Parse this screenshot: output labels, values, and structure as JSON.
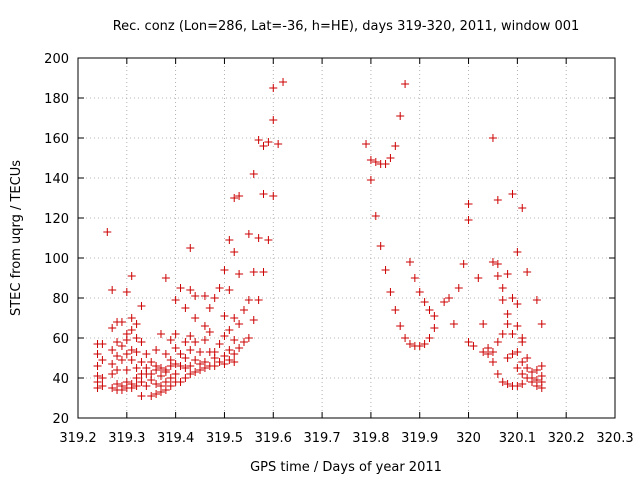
{
  "chart_data": {
    "type": "scatter",
    "title": "Rec. conz (Lon=286, Lat=-36, h=HE), days 319-320, 2011, window 001",
    "xlabel": "GPS time / Days of year 2011",
    "ylabel": "STEC from uqrg / TECUs",
    "xlim": [
      319.2,
      320.3
    ],
    "ylim": [
      20,
      200
    ],
    "x_ticks": [
      319.2,
      319.3,
      319.4,
      319.5,
      319.6,
      319.7,
      319.8,
      319.9,
      320.0,
      320.1,
      320.2,
      320.3
    ],
    "x_tick_labels": [
      "319.2",
      "319.3",
      "319.4",
      "319.5",
      "319.6",
      "319.7",
      "319.8",
      "319.9",
      "320",
      "320.1",
      "320.2",
      "320.3"
    ],
    "y_ticks": [
      20,
      40,
      60,
      80,
      100,
      120,
      140,
      160,
      180,
      200
    ],
    "y_tick_labels": [
      "20",
      "40",
      "60",
      "80",
      "100",
      "120",
      "140",
      "160",
      "180",
      "200"
    ],
    "grid": true,
    "marker": "+",
    "color": "#cc0000",
    "series": [
      {
        "points": [
          [
            319.24,
            41
          ],
          [
            319.24,
            46
          ],
          [
            319.24,
            52
          ],
          [
            319.24,
            57
          ],
          [
            319.24,
            35
          ],
          [
            319.24,
            38
          ],
          [
            319.25,
            40
          ],
          [
            319.25,
            36
          ],
          [
            319.25,
            49
          ],
          [
            319.25,
            57
          ],
          [
            319.26,
            113
          ],
          [
            319.27,
            35
          ],
          [
            319.27,
            42
          ],
          [
            319.27,
            47
          ],
          [
            319.27,
            54
          ],
          [
            319.27,
            65
          ],
          [
            319.27,
            84
          ],
          [
            319.28,
            34
          ],
          [
            319.28,
            37
          ],
          [
            319.28,
            44
          ],
          [
            319.28,
            51
          ],
          [
            319.28,
            58
          ],
          [
            319.28,
            68
          ],
          [
            319.29,
            34
          ],
          [
            319.29,
            36
          ],
          [
            319.29,
            49
          ],
          [
            319.29,
            56
          ],
          [
            319.29,
            68
          ],
          [
            319.3,
            35
          ],
          [
            319.3,
            38
          ],
          [
            319.3,
            44
          ],
          [
            319.3,
            52
          ],
          [
            319.3,
            59
          ],
          [
            319.3,
            62
          ],
          [
            319.3,
            83
          ],
          [
            319.31,
            35
          ],
          [
            319.31,
            37
          ],
          [
            319.31,
            49
          ],
          [
            319.31,
            54
          ],
          [
            319.31,
            64
          ],
          [
            319.31,
            70
          ],
          [
            319.31,
            91
          ],
          [
            319.32,
            36
          ],
          [
            319.32,
            40
          ],
          [
            319.32,
            45
          ],
          [
            319.32,
            53
          ],
          [
            319.32,
            60
          ],
          [
            319.32,
            67
          ],
          [
            319.33,
            31
          ],
          [
            319.33,
            38
          ],
          [
            319.33,
            42
          ],
          [
            319.33,
            48
          ],
          [
            319.33,
            58
          ],
          [
            319.33,
            76
          ],
          [
            319.34,
            36
          ],
          [
            319.34,
            42
          ],
          [
            319.34,
            45
          ],
          [
            319.34,
            52
          ],
          [
            319.35,
            31
          ],
          [
            319.35,
            39
          ],
          [
            319.35,
            42
          ],
          [
            319.35,
            48
          ],
          [
            319.36,
            32
          ],
          [
            319.36,
            37
          ],
          [
            319.36,
            44
          ],
          [
            319.36,
            46
          ],
          [
            319.36,
            54
          ],
          [
            319.37,
            33
          ],
          [
            319.37,
            36
          ],
          [
            319.37,
            41
          ],
          [
            319.37,
            45
          ],
          [
            319.37,
            62
          ],
          [
            319.38,
            34
          ],
          [
            319.38,
            38
          ],
          [
            319.38,
            43
          ],
          [
            319.38,
            44
          ],
          [
            319.38,
            52
          ],
          [
            319.38,
            90
          ],
          [
            319.39,
            36
          ],
          [
            319.39,
            40
          ],
          [
            319.39,
            46
          ],
          [
            319.39,
            49
          ],
          [
            319.39,
            59
          ],
          [
            319.4,
            38
          ],
          [
            319.4,
            42
          ],
          [
            319.4,
            47
          ],
          [
            319.4,
            55
          ],
          [
            319.4,
            62
          ],
          [
            319.4,
            79
          ],
          [
            319.41,
            38
          ],
          [
            319.41,
            46
          ],
          [
            319.41,
            52
          ],
          [
            319.41,
            85
          ],
          [
            319.42,
            40
          ],
          [
            319.42,
            45
          ],
          [
            319.42,
            50
          ],
          [
            319.42,
            58
          ],
          [
            319.42,
            75
          ],
          [
            319.43,
            42
          ],
          [
            319.43,
            46
          ],
          [
            319.43,
            54
          ],
          [
            319.43,
            61
          ],
          [
            319.43,
            84
          ],
          [
            319.43,
            105
          ],
          [
            319.44,
            43
          ],
          [
            319.44,
            49
          ],
          [
            319.44,
            58
          ],
          [
            319.44,
            70
          ],
          [
            319.44,
            81
          ],
          [
            319.45,
            44
          ],
          [
            319.45,
            47
          ],
          [
            319.45,
            53
          ],
          [
            319.46,
            45
          ],
          [
            319.46,
            48
          ],
          [
            319.46,
            59
          ],
          [
            319.46,
            66
          ],
          [
            319.46,
            81
          ],
          [
            319.47,
            46
          ],
          [
            319.47,
            53
          ],
          [
            319.47,
            63
          ],
          [
            319.47,
            75
          ],
          [
            319.48,
            46
          ],
          [
            319.48,
            50
          ],
          [
            319.48,
            53
          ],
          [
            319.48,
            80
          ],
          [
            319.49,
            48
          ],
          [
            319.49,
            57
          ],
          [
            319.49,
            85
          ],
          [
            319.5,
            47
          ],
          [
            319.5,
            51
          ],
          [
            319.5,
            61
          ],
          [
            319.5,
            71
          ],
          [
            319.5,
            94
          ],
          [
            319.51,
            49
          ],
          [
            319.51,
            54
          ],
          [
            319.51,
            64
          ],
          [
            319.51,
            84
          ],
          [
            319.51,
            109
          ],
          [
            319.52,
            48
          ],
          [
            319.52,
            52
          ],
          [
            319.52,
            59
          ],
          [
            319.52,
            70
          ],
          [
            319.52,
            103
          ],
          [
            319.52,
            130
          ],
          [
            319.53,
            55
          ],
          [
            319.53,
            67
          ],
          [
            319.53,
            92
          ],
          [
            319.53,
            131
          ],
          [
            319.54,
            58
          ],
          [
            319.54,
            74
          ],
          [
            319.55,
            60
          ],
          [
            319.55,
            79
          ],
          [
            319.55,
            112
          ],
          [
            319.56,
            69
          ],
          [
            319.56,
            93
          ],
          [
            319.56,
            142
          ],
          [
            319.57,
            79
          ],
          [
            319.57,
            110
          ],
          [
            319.57,
            159
          ],
          [
            319.58,
            93
          ],
          [
            319.58,
            132
          ],
          [
            319.58,
            156
          ],
          [
            319.59,
            109
          ],
          [
            319.59,
            158
          ],
          [
            319.6,
            131
          ],
          [
            319.6,
            169
          ],
          [
            319.6,
            185
          ],
          [
            319.61,
            157
          ],
          [
            319.62,
            188
          ],
          [
            319.79,
            157
          ],
          [
            319.8,
            139
          ],
          [
            319.8,
            149
          ],
          [
            319.81,
            121
          ],
          [
            319.81,
            148
          ],
          [
            319.82,
            106
          ],
          [
            319.82,
            147
          ],
          [
            319.83,
            94
          ],
          [
            319.83,
            147
          ],
          [
            319.84,
            83
          ],
          [
            319.84,
            150
          ],
          [
            319.85,
            74
          ],
          [
            319.85,
            156
          ],
          [
            319.86,
            66
          ],
          [
            319.86,
            171
          ],
          [
            319.87,
            60
          ],
          [
            319.87,
            187
          ],
          [
            319.88,
            57
          ],
          [
            319.88,
            98
          ],
          [
            319.89,
            56
          ],
          [
            319.89,
            90
          ],
          [
            319.9,
            56
          ],
          [
            319.9,
            83
          ],
          [
            319.91,
            57
          ],
          [
            319.91,
            78
          ],
          [
            319.92,
            60
          ],
          [
            319.92,
            74
          ],
          [
            319.93,
            65
          ],
          [
            319.93,
            71
          ],
          [
            319.95,
            78
          ],
          [
            319.96,
            80
          ],
          [
            319.97,
            67
          ],
          [
            319.98,
            85
          ],
          [
            319.99,
            97
          ],
          [
            320.0,
            58
          ],
          [
            320.0,
            119
          ],
          [
            320.0,
            127
          ],
          [
            320.01,
            56
          ],
          [
            320.02,
            90
          ],
          [
            320.03,
            53
          ],
          [
            320.03,
            67
          ],
          [
            320.04,
            52
          ],
          [
            320.04,
            55
          ],
          [
            320.05,
            48
          ],
          [
            320.05,
            53
          ],
          [
            320.05,
            98
          ],
          [
            320.05,
            160
          ],
          [
            320.06,
            42
          ],
          [
            320.06,
            58
          ],
          [
            320.06,
            91
          ],
          [
            320.06,
            129
          ],
          [
            320.06,
            97
          ],
          [
            320.07,
            38
          ],
          [
            320.07,
            62
          ],
          [
            320.07,
            79
          ],
          [
            320.07,
            85
          ],
          [
            320.08,
            37
          ],
          [
            320.08,
            50
          ],
          [
            320.08,
            67
          ],
          [
            320.08,
            72
          ],
          [
            320.08,
            92
          ],
          [
            320.09,
            36
          ],
          [
            320.09,
            52
          ],
          [
            320.09,
            62
          ],
          [
            320.09,
            80
          ],
          [
            320.09,
            132
          ],
          [
            320.1,
            36
          ],
          [
            320.1,
            45
          ],
          [
            320.1,
            53
          ],
          [
            320.1,
            66
          ],
          [
            320.1,
            77
          ],
          [
            320.1,
            103
          ],
          [
            320.11,
            37
          ],
          [
            320.11,
            42
          ],
          [
            320.11,
            48
          ],
          [
            320.11,
            58
          ],
          [
            320.11,
            60
          ],
          [
            320.11,
            125
          ],
          [
            320.12,
            40
          ],
          [
            320.12,
            45
          ],
          [
            320.12,
            50
          ],
          [
            320.12,
            93
          ],
          [
            320.13,
            38
          ],
          [
            320.13,
            40
          ],
          [
            320.13,
            43
          ],
          [
            320.14,
            36
          ],
          [
            320.14,
            39
          ],
          [
            320.14,
            44
          ],
          [
            320.14,
            79
          ],
          [
            320.15,
            35
          ],
          [
            320.15,
            38
          ],
          [
            320.15,
            41
          ],
          [
            320.15,
            46
          ],
          [
            320.15,
            67
          ]
        ]
      }
    ]
  }
}
